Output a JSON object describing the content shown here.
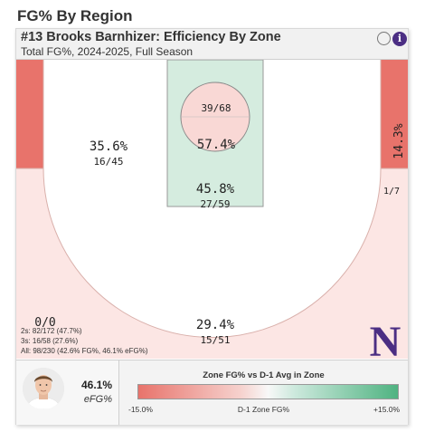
{
  "page": {
    "heading": "FG% By Region"
  },
  "card": {
    "title": "#13 Brooks Barnhizer: Efficiency By Zone",
    "subtitle": "Total FG%, 2024-2025, Full Season"
  },
  "colors": {
    "hot": "#e8736b",
    "cold": "#4fb381",
    "neutral": "#f8f8f8",
    "team_purple": "#4b2e83"
  },
  "chart_data": {
    "type": "heatmap",
    "title": "#13 Brooks Barnhizer: Efficiency By Zone",
    "zones": [
      {
        "name": "Restricted Area",
        "pct": "57.4%",
        "made_attempts": "39/68",
        "relative": 0
      },
      {
        "name": "Paint (Non-RA)",
        "pct": "45.8%",
        "made_attempts": "27/59",
        "relative": 4
      },
      {
        "name": "Mid-Range",
        "pct": "35.6%",
        "made_attempts": "16/45",
        "relative": -1
      },
      {
        "name": "Right Corner 3",
        "pct": "14.3%",
        "made_attempts": "1/7",
        "relative": -15
      },
      {
        "name": "Left Corner 3",
        "pct": "0/0",
        "made_attempts": "",
        "relative": -15
      },
      {
        "name": "Above the Break 3",
        "pct": "29.4%",
        "made_attempts": "15/51",
        "relative": -4
      }
    ],
    "summary": [
      "2s: 82/172 (47.7%)",
      "3s: 16/58 (27.6%)",
      "All: 98/230 (42.6% FG%, 46.1% eFG%)"
    ],
    "legend": {
      "title": "Zone FG% vs D-1 Avg in Zone",
      "min": "-15.0%",
      "max": "+15.0%",
      "axis_label": "D-1 Zone FG%"
    }
  },
  "player": {
    "efg_value": "46.1%",
    "efg_label": "eFG%"
  },
  "icons": {
    "logo": "northwestern-n-logo",
    "info": "info-icon",
    "avatar": "player-headshot"
  },
  "logo_text": "N"
}
